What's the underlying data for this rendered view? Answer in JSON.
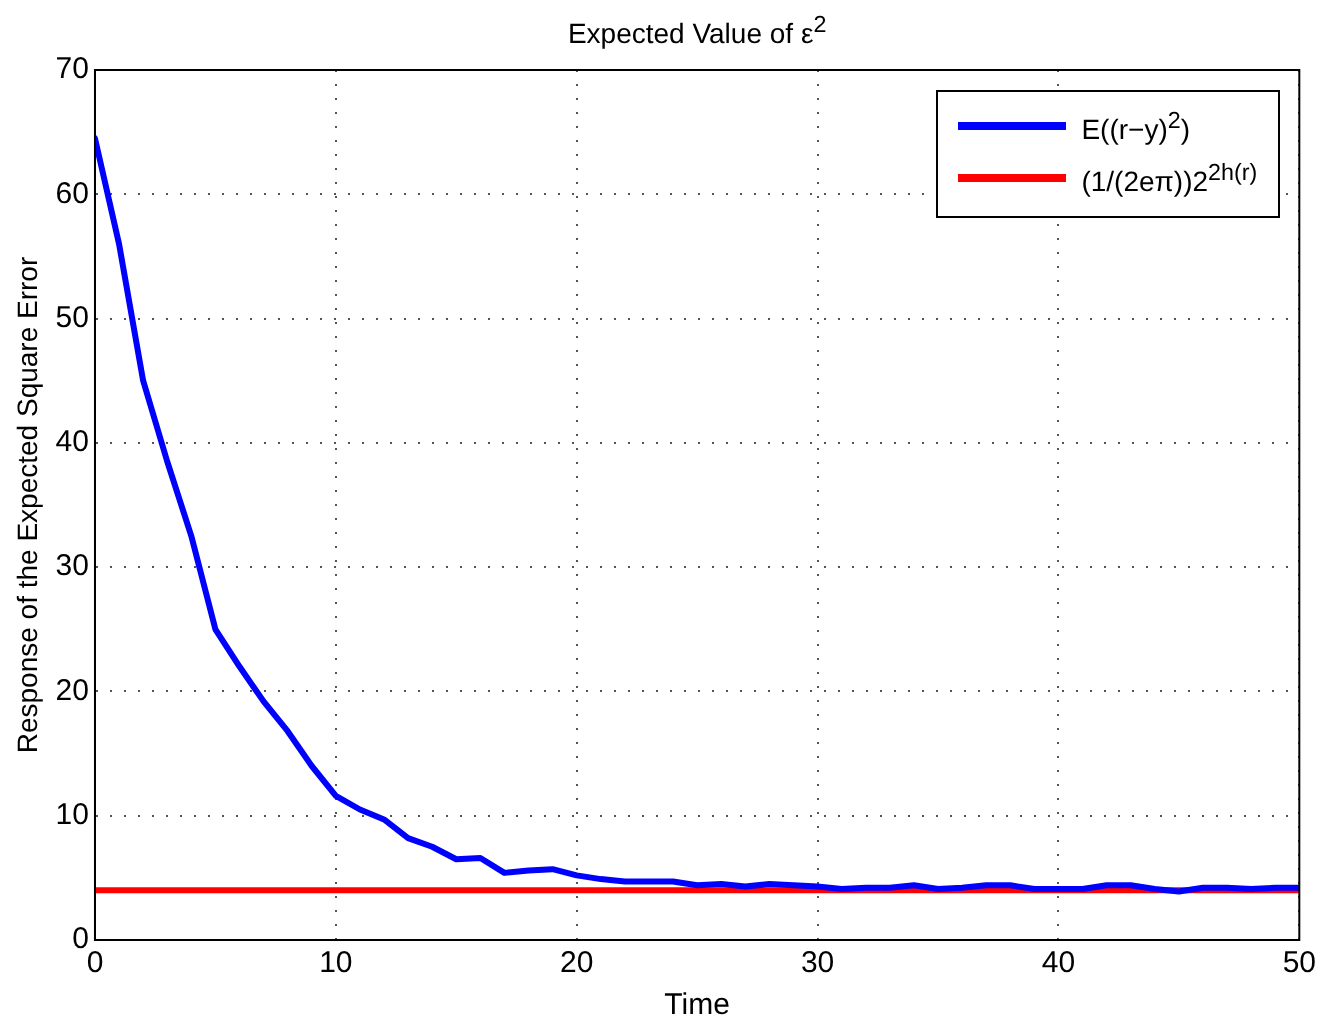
{
  "chart_data": {
    "type": "line",
    "title": "Expected Value of ε$^{2}$",
    "xlabel": "Time",
    "ylabel": "Response of the Expected Square Error",
    "xlim": [
      0,
      50
    ],
    "xticks": [
      0,
      10,
      20,
      30,
      40,
      50
    ],
    "ylim": [
      0,
      70
    ],
    "yticks": [
      0,
      10,
      20,
      30,
      40,
      50,
      60,
      70
    ],
    "grid": true,
    "legend": "top right",
    "marker": "none",
    "line_style": "solid",
    "series": [
      {
        "name": "E((r−y)$^{2}$)",
        "color": "#0000ff",
        "x": [
          0,
          1,
          2,
          3,
          4,
          5,
          6,
          7,
          8,
          9,
          10,
          11,
          12,
          13,
          14,
          15,
          16,
          17,
          18,
          19,
          20,
          21,
          22,
          23,
          24,
          25,
          26,
          27,
          28,
          29,
          30,
          31,
          32,
          33,
          34,
          35,
          36,
          37,
          38,
          39,
          40,
          41,
          42,
          43,
          44,
          45,
          46,
          47,
          48,
          49,
          50
        ],
        "values": [
          64.5,
          56,
          45,
          38.5,
          32.5,
          25,
          22,
          19.2,
          16.8,
          14,
          11.6,
          10.5,
          9.7,
          8.2,
          7.5,
          6.5,
          6.6,
          5.4,
          5.6,
          5.7,
          5.2,
          4.9,
          4.7,
          4.7,
          4.7,
          4.4,
          4.5,
          4.3,
          4.5,
          4.4,
          4.3,
          4.1,
          4.2,
          4.2,
          4.4,
          4.1,
          4.2,
          4.4,
          4.4,
          4.1,
          4.1,
          4.1,
          4.4,
          4.4,
          4.1,
          3.9,
          4.2,
          4.2,
          4.1,
          4.2,
          4.2
        ]
      },
      {
        "name": "(1/(2eπ))2$^{2h(r)}$",
        "color": "#ff0000",
        "x": [
          0,
          50
        ],
        "values": [
          4,
          4
        ]
      }
    ]
  }
}
